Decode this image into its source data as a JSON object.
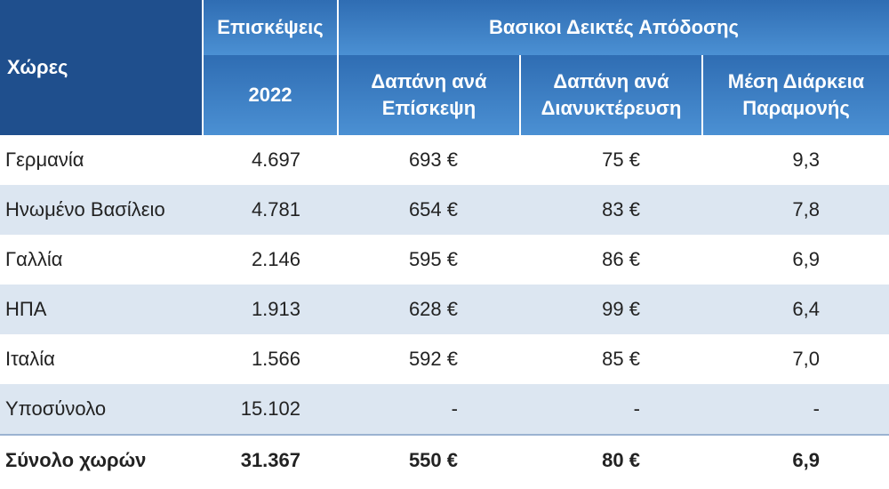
{
  "table": {
    "header": {
      "countries": "Χώρες",
      "visits": "Επισκέψεις",
      "year": "2022",
      "kpi": "Βασικοι Δεικτές Απόδοσης",
      "spend_per_visit": "Δαπάνη ανά Επίσκεψη",
      "spend_per_night": "Δαπάνη ανά Διανυκτέρευση",
      "avg_stay": "Μέση Διάρκεια Παραμονής"
    },
    "rows": [
      [
        "Γερμανία",
        "4.697",
        "693 €",
        "75 €",
        "9,3"
      ],
      [
        "Ηνωμένο Βασίλειο",
        "4.781",
        "654 €",
        "83 €",
        "7,8"
      ],
      [
        "Γαλλία",
        "2.146",
        "595 €",
        "86 €",
        "6,9"
      ],
      [
        "ΗΠΑ",
        "1.913",
        "628 €",
        "99 €",
        "6,4"
      ],
      [
        "Ιταλία",
        "1.566",
        "592 €",
        "85 €",
        "7,0"
      ],
      [
        "Υποσύνολο",
        "15.102",
        "-",
        "-",
        "-"
      ]
    ],
    "total": [
      "Σύνολο χωρών",
      "31.367",
      "550 €",
      "80 €",
      "6,9"
    ]
  }
}
